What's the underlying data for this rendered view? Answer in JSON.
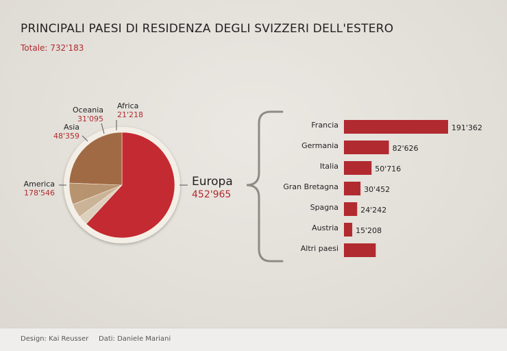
{
  "title": "PRINCIPALI PAESI DI RESIDENZA DEGLI SVIZZERI DELL'ESTERO",
  "total": "Totale: 732'183",
  "colors": {
    "accent": "#b12a2f",
    "text": "#222222"
  },
  "chart_data": [
    {
      "type": "pie",
      "title": "",
      "slices": [
        {
          "name": "Europa",
          "value": 452965,
          "label": "452'965",
          "color": "#c42a31"
        },
        {
          "name": "America",
          "value": 178546,
          "label": "178'546",
          "color": "#a06a44"
        },
        {
          "name": "Asia",
          "value": 48359,
          "label": "48'359",
          "color": "#b8936f"
        },
        {
          "name": "Oceania",
          "value": 31095,
          "label": "31'095",
          "color": "#cbb398"
        },
        {
          "name": "Africa",
          "value": 21218,
          "label": "21'218",
          "color": "#ddd0bd"
        }
      ]
    },
    {
      "type": "bar",
      "orientation": "horizontal",
      "title": "",
      "categories": [
        "Francia",
        "Germania",
        "Italia",
        "Gran Bretagna",
        "Spagna",
        "Austria",
        "Altri paesi"
      ],
      "values": [
        191362,
        82626,
        50716,
        30452,
        24242,
        15208,
        58359
      ],
      "value_labels": [
        "191'362",
        "82'626",
        "50'716",
        "30'452",
        "24'242",
        "15'208",
        ""
      ],
      "color": "#b12a2f"
    }
  ],
  "footer": {
    "design": "Design: Kai Reusser",
    "data": "Dati: Daniele Mariani"
  }
}
